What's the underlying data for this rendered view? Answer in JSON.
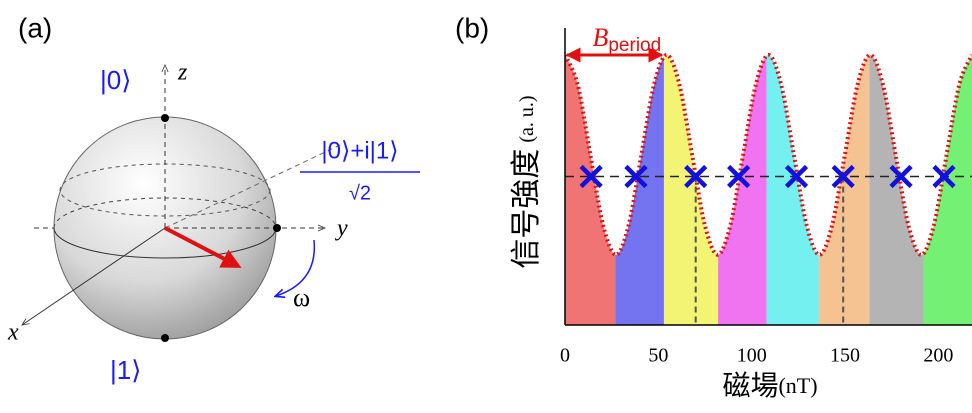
{
  "panel_a": {
    "label": "(a)",
    "ket0": "|0⟩",
    "ket1": "|1⟩",
    "z": "z",
    "y": "y",
    "x": "x",
    "omega": "ω",
    "superposition": "|0⟩+i|1⟩",
    "sqrt2": "√2"
  },
  "chart_data": {
    "type": "line",
    "panel_label": "(b)",
    "y_label": "信号強度",
    "y_label_unit": "(a. u.)",
    "x_label": "磁場",
    "x_label_unit": "(nT)",
    "annotation": "B",
    "annotation_sub": "period",
    "x": [
      0,
      6.8,
      13.6,
      20.4,
      27.3,
      34.1,
      40.9,
      47.7,
      54.5,
      61.3,
      68.1,
      74.9,
      81.8,
      88.6,
      95.4,
      102.2,
      109,
      115.8,
      122.6,
      129.4,
      136.3,
      143.1,
      149.9,
      156.7,
      163.5,
      170.3,
      177.1,
      183.9,
      190.8,
      197.6,
      204.4,
      211.2,
      218
    ],
    "values": [
      1,
      0.89,
      0.63,
      0.37,
      0.26,
      0.37,
      0.63,
      0.89,
      1,
      0.89,
      0.63,
      0.37,
      0.26,
      0.37,
      0.63,
      0.89,
      1,
      0.89,
      0.63,
      0.37,
      0.26,
      0.37,
      0.63,
      0.89,
      1,
      0.89,
      0.63,
      0.37,
      0.26,
      0.37,
      0.63,
      0.89,
      1
    ],
    "color": "#e01010",
    "bands": {
      "edges": [
        0,
        27,
        53,
        82,
        108,
        136,
        163,
        192,
        218
      ],
      "colors": [
        "#f07474",
        "#7474f0",
        "#f4f474",
        "#f074f0",
        "#74f0f0",
        "#f5c291",
        "#b4b4b4",
        "#74f074"
      ]
    },
    "threshold": 0.55,
    "crosses": [
      14,
      38,
      70,
      93,
      124,
      149,
      180,
      203
    ],
    "guides": [
      70,
      149
    ],
    "period_arrow": [
      0,
      53
    ],
    "xlim": [
      0,
      218
    ],
    "ylim": [
      0,
      1.1
    ],
    "xticks": [
      0,
      50,
      100,
      150,
      200
    ]
  }
}
